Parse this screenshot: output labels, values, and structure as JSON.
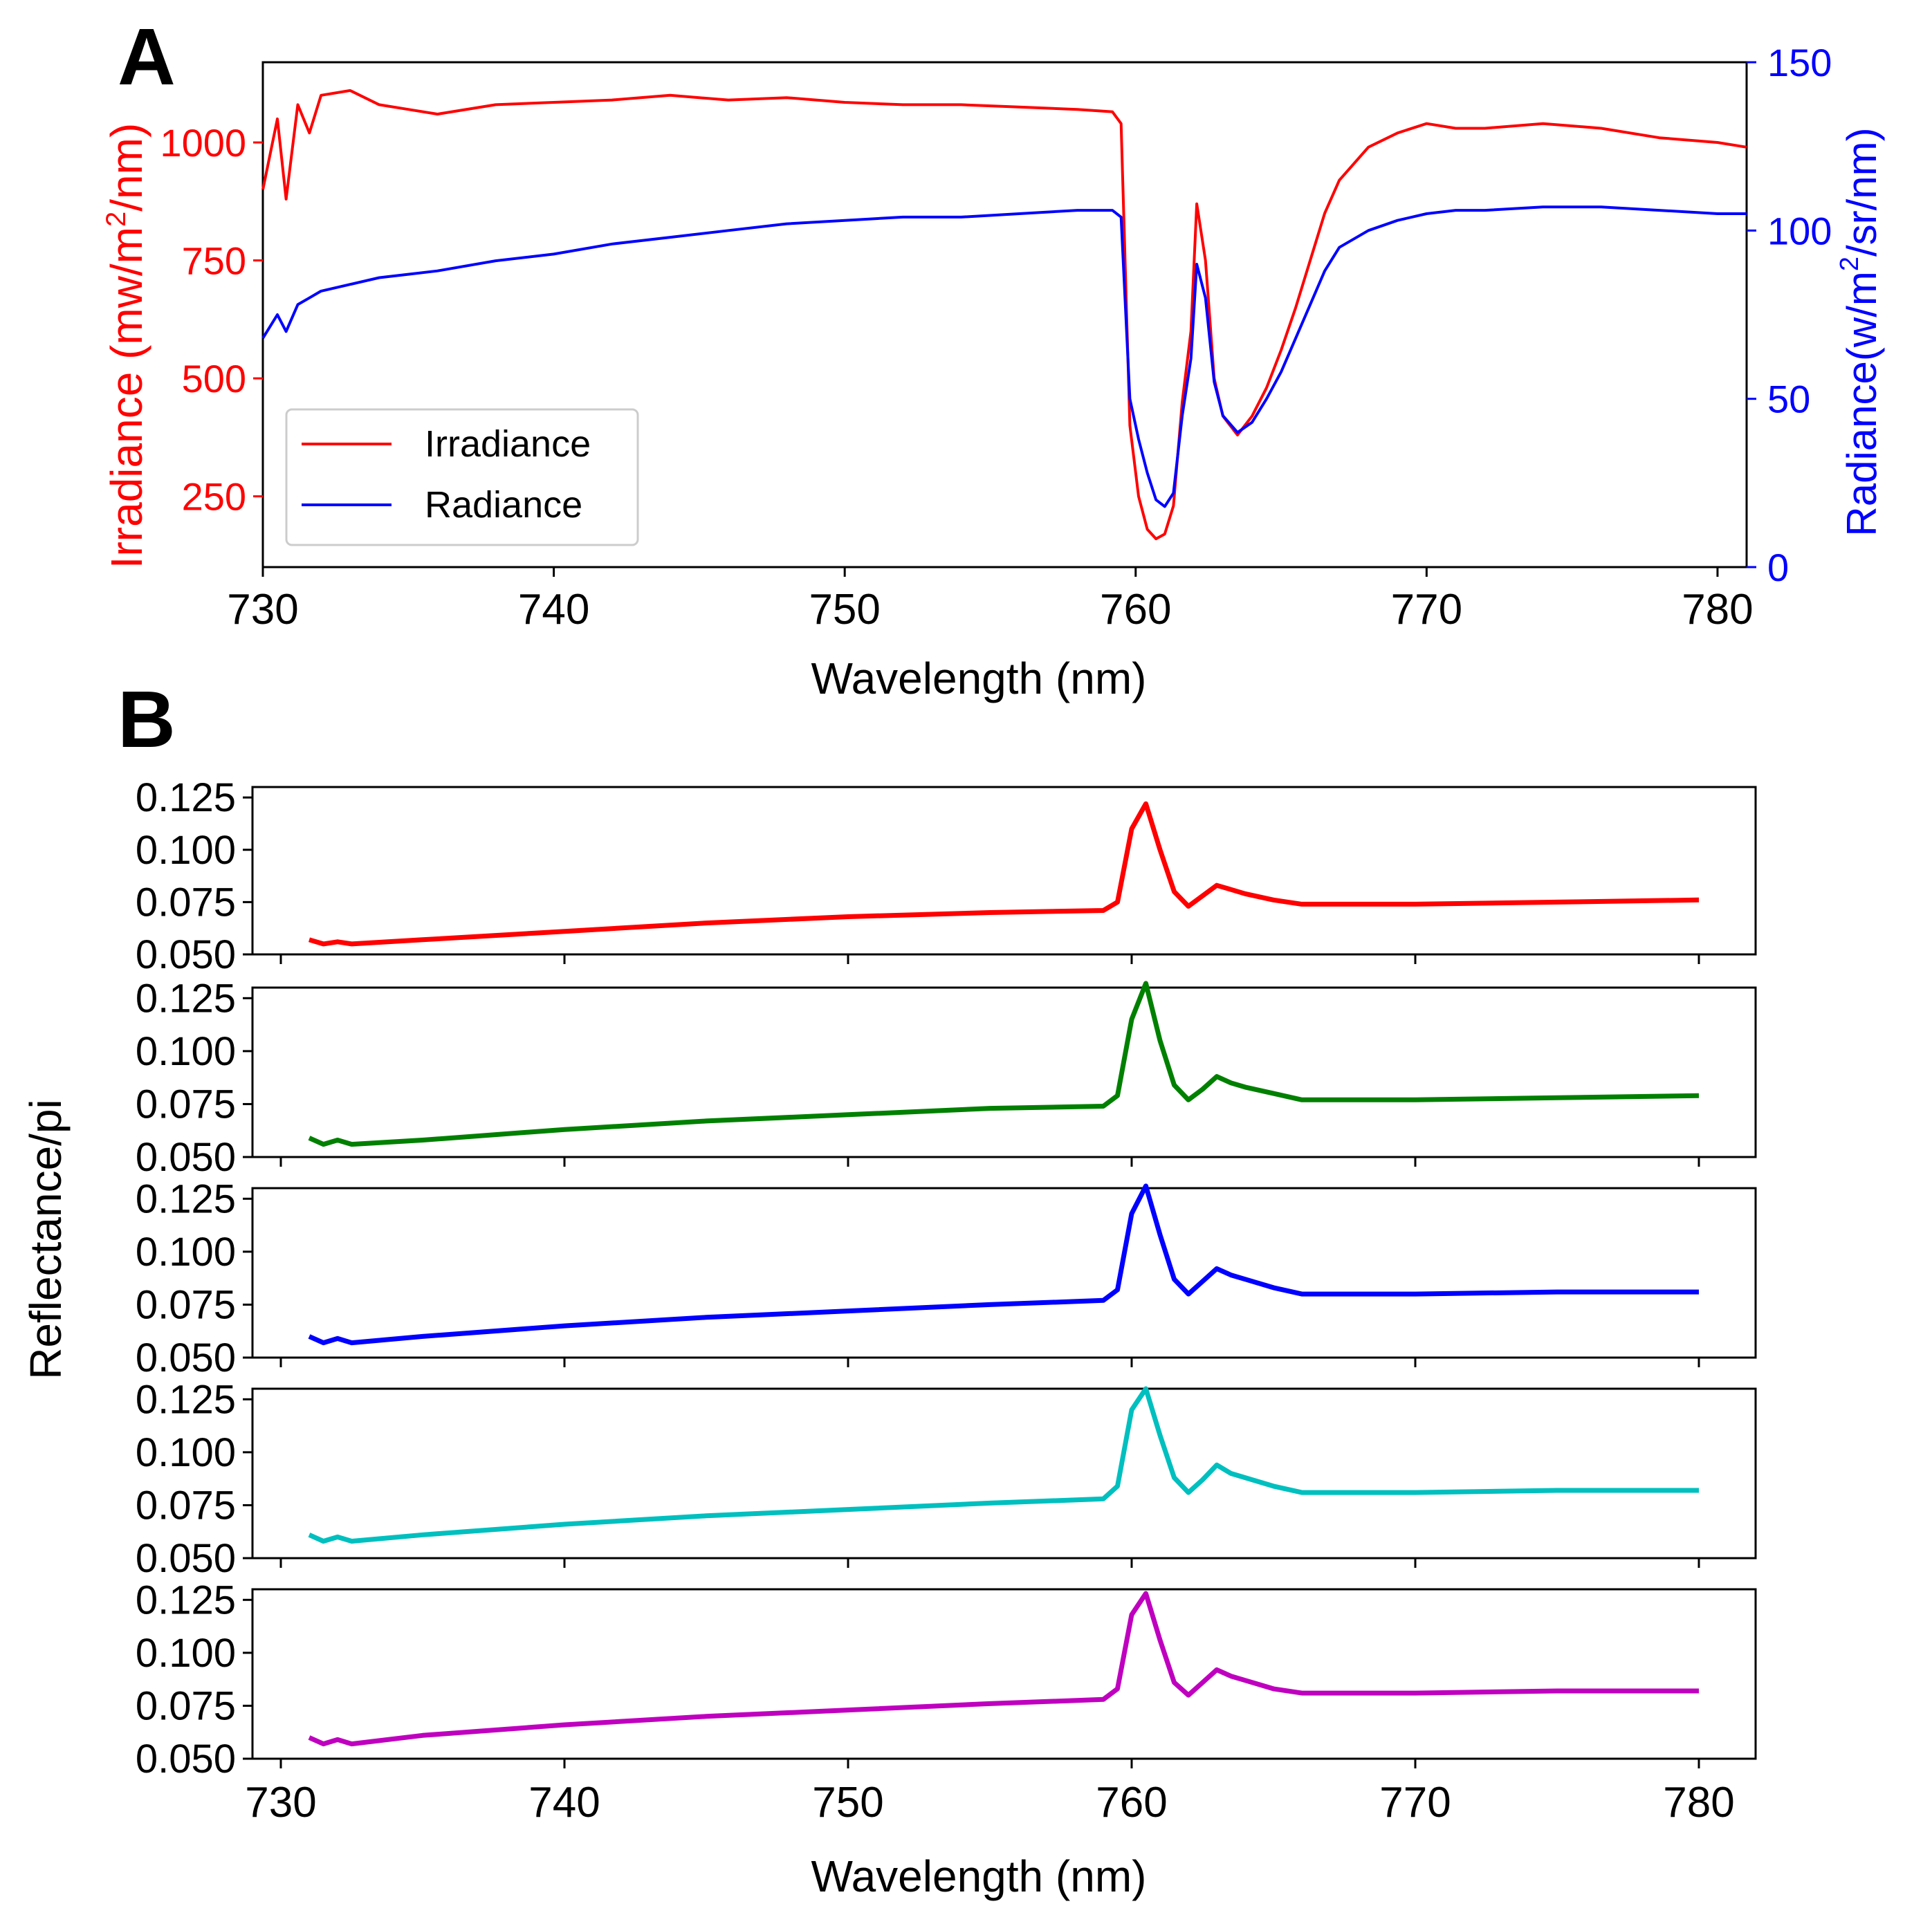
{
  "chart_data": [
    {
      "panel_label": "A",
      "type": "line",
      "xlabel": "Wavelength (nm)",
      "xlim": [
        730,
        781
      ],
      "xticks": [
        730,
        740,
        750,
        760,
        770,
        780
      ],
      "ylabel_left": "Irradiance (mw/m²/nm)",
      "ylabel_left_parts": {
        "pre": "Irradiance (mw/m",
        "sup": "2",
        "post": "/nm)"
      },
      "ylim_left": [
        100,
        1170
      ],
      "yticks_left": [
        250,
        500,
        750,
        1000
      ],
      "ylabel_right": "Radiance(w/m²/sr/nm)",
      "ylabel_right_parts": {
        "pre": "Radiance(w/m",
        "sup": "2",
        "post": "/sr/nm)"
      },
      "ylim_right": [
        0,
        150
      ],
      "yticks_right": [
        0,
        50,
        100,
        150
      ],
      "legend_location": "lower left",
      "grid": false,
      "colors": {
        "left_axis": "#ff0000",
        "right_axis": "#0000ff"
      },
      "series": [
        {
          "name": "Irradiance",
          "axis": "left",
          "color": "#ff0000",
          "x": [
            730.0,
            730.5,
            730.8,
            731.2,
            731.6,
            732.0,
            733.0,
            734.0,
            735.0,
            736.0,
            738.0,
            740.0,
            742.0,
            744.0,
            746.0,
            748.0,
            750.0,
            752.0,
            754.0,
            756.0,
            758.0,
            759.2,
            759.5,
            759.8,
            760.1,
            760.4,
            760.7,
            761.0,
            761.3,
            761.6,
            761.9,
            762.1,
            762.4,
            762.7,
            763.0,
            763.5,
            764.0,
            764.5,
            765.0,
            765.5,
            766.0,
            766.5,
            767.0,
            768.0,
            769.0,
            770.0,
            771.0,
            772.0,
            774.0,
            776.0,
            778.0,
            780.0,
            781.0
          ],
          "values": [
            900,
            1050,
            880,
            1080,
            1020,
            1100,
            1110,
            1080,
            1070,
            1060,
            1080,
            1085,
            1090,
            1100,
            1090,
            1095,
            1085,
            1080,
            1080,
            1075,
            1070,
            1065,
            1040,
            400,
            250,
            180,
            160,
            170,
            230,
            450,
            600,
            870,
            750,
            500,
            420,
            380,
            420,
            480,
            560,
            650,
            750,
            850,
            920,
            990,
            1020,
            1040,
            1030,
            1030,
            1040,
            1030,
            1010,
            1000,
            990
          ]
        },
        {
          "name": "Radiance",
          "axis": "right",
          "color": "#0000ff",
          "x": [
            730.0,
            730.5,
            730.8,
            731.2,
            731.6,
            732.0,
            733.0,
            734.0,
            735.0,
            736.0,
            738.0,
            740.0,
            742.0,
            744.0,
            746.0,
            748.0,
            750.0,
            752.0,
            754.0,
            756.0,
            758.0,
            759.2,
            759.5,
            759.8,
            760.1,
            760.4,
            760.7,
            761.0,
            761.3,
            761.6,
            761.9,
            762.1,
            762.4,
            762.7,
            763.0,
            763.5,
            764.0,
            764.5,
            765.0,
            765.5,
            766.0,
            766.5,
            767.0,
            768.0,
            769.0,
            770.0,
            771.0,
            772.0,
            774.0,
            776.0,
            778.0,
            780.0,
            781.0
          ],
          "values": [
            68,
            75,
            70,
            78,
            80,
            82,
            84,
            86,
            87,
            88,
            91,
            93,
            96,
            98,
            100,
            102,
            103,
            104,
            104,
            105,
            106,
            106,
            104,
            50,
            38,
            28,
            20,
            18,
            22,
            45,
            62,
            90,
            80,
            55,
            45,
            40,
            43,
            50,
            58,
            68,
            78,
            88,
            95,
            100,
            103,
            105,
            106,
            106,
            107,
            107,
            106,
            105,
            105
          ]
        }
      ]
    },
    {
      "panel_label": "B",
      "type": "line",
      "xlabel": "Wavelength (nm)",
      "ylabel": "Reflectance/pi",
      "xlim": [
        729,
        782
      ],
      "xticks": [
        730,
        740,
        750,
        760,
        770,
        780
      ],
      "ylim": [
        0.05,
        0.13
      ],
      "yticks": [
        "0.050",
        "0.075",
        "0.100",
        "0.125"
      ],
      "grid": false,
      "series": [
        {
          "color": "#ff0000",
          "x": [
            731.0,
            731.5,
            732.0,
            732.5,
            735.0,
            740.0,
            745.0,
            750.0,
            755.0,
            759.0,
            759.5,
            760.0,
            760.5,
            761.0,
            761.5,
            762.0,
            762.5,
            763.0,
            763.5,
            764.0,
            765.0,
            766.0,
            768.0,
            770.0,
            775.0,
            780.0
          ],
          "values": [
            0.057,
            0.055,
            0.056,
            0.055,
            0.057,
            0.061,
            0.065,
            0.068,
            0.07,
            0.071,
            0.075,
            0.11,
            0.122,
            0.1,
            0.08,
            0.073,
            0.078,
            0.083,
            0.081,
            0.079,
            0.076,
            0.074,
            0.074,
            0.074,
            0.075,
            0.076
          ]
        },
        {
          "color": "#008000",
          "x": [
            731.0,
            731.5,
            732.0,
            732.5,
            735.0,
            740.0,
            745.0,
            750.0,
            755.0,
            759.0,
            759.5,
            760.0,
            760.5,
            761.0,
            761.5,
            762.0,
            762.5,
            763.0,
            763.5,
            764.0,
            765.0,
            766.0,
            768.0,
            770.0,
            775.0,
            780.0
          ],
          "values": [
            0.059,
            0.056,
            0.058,
            0.056,
            0.058,
            0.063,
            0.067,
            0.07,
            0.073,
            0.074,
            0.079,
            0.115,
            0.132,
            0.105,
            0.084,
            0.077,
            0.082,
            0.088,
            0.085,
            0.083,
            0.08,
            0.077,
            0.077,
            0.077,
            0.078,
            0.079
          ]
        },
        {
          "color": "#0000ff",
          "x": [
            731.0,
            731.5,
            732.0,
            732.5,
            735.0,
            740.0,
            745.0,
            750.0,
            755.0,
            759.0,
            759.5,
            760.0,
            760.5,
            761.0,
            761.5,
            762.0,
            762.5,
            763.0,
            763.5,
            764.0,
            765.0,
            766.0,
            768.0,
            770.0,
            775.0,
            780.0
          ],
          "values": [
            0.06,
            0.057,
            0.059,
            0.057,
            0.06,
            0.065,
            0.069,
            0.072,
            0.075,
            0.077,
            0.082,
            0.118,
            0.131,
            0.108,
            0.087,
            0.08,
            0.086,
            0.092,
            0.089,
            0.087,
            0.083,
            0.08,
            0.08,
            0.08,
            0.081,
            0.081
          ]
        },
        {
          "color": "#00bfbf",
          "x": [
            731.0,
            731.5,
            732.0,
            732.5,
            735.0,
            740.0,
            745.0,
            750.0,
            755.0,
            759.0,
            759.5,
            760.0,
            760.5,
            761.0,
            761.5,
            762.0,
            762.5,
            763.0,
            763.5,
            764.0,
            765.0,
            766.0,
            768.0,
            770.0,
            775.0,
            780.0
          ],
          "values": [
            0.061,
            0.058,
            0.06,
            0.058,
            0.061,
            0.066,
            0.07,
            0.073,
            0.076,
            0.078,
            0.084,
            0.12,
            0.13,
            0.108,
            0.088,
            0.081,
            0.087,
            0.094,
            0.09,
            0.088,
            0.084,
            0.081,
            0.081,
            0.081,
            0.082,
            0.082
          ]
        },
        {
          "color": "#bf00bf",
          "x": [
            731.0,
            731.5,
            732.0,
            732.5,
            735.0,
            740.0,
            745.0,
            750.0,
            755.0,
            759.0,
            759.5,
            760.0,
            760.5,
            761.0,
            761.5,
            762.0,
            762.5,
            763.0,
            763.5,
            764.0,
            765.0,
            766.0,
            768.0,
            770.0,
            775.0,
            780.0
          ],
          "values": [
            0.06,
            0.057,
            0.059,
            0.057,
            0.061,
            0.066,
            0.07,
            0.073,
            0.076,
            0.078,
            0.083,
            0.118,
            0.128,
            0.106,
            0.086,
            0.08,
            0.086,
            0.092,
            0.089,
            0.087,
            0.083,
            0.081,
            0.081,
            0.081,
            0.082,
            0.082
          ]
        }
      ]
    }
  ]
}
